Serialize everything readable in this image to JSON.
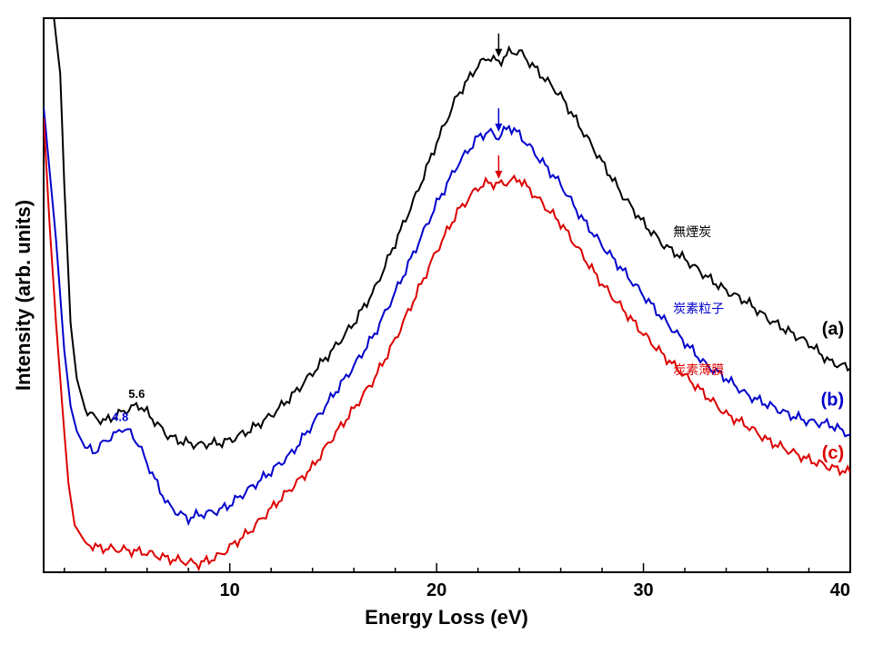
{
  "chart_data": {
    "type": "line",
    "title": "",
    "xlabel": "Energy Loss (eV)",
    "ylabel": "Intensity (arb. units)",
    "xlim": [
      1,
      40
    ],
    "ylim": [
      0,
      100
    ],
    "x_ticks": [
      10,
      20,
      30,
      40
    ],
    "y_tick_labels": false,
    "grid": false,
    "series": [
      {
        "name": "無煙炭",
        "letter": "(a)",
        "color": "#000000",
        "points": [
          [
            1.3,
            100
          ],
          [
            1.5,
            100
          ],
          [
            1.8,
            90
          ],
          [
            2.0,
            70
          ],
          [
            2.3,
            45
          ],
          [
            2.6,
            35
          ],
          [
            3.0,
            29.5
          ],
          [
            3.5,
            27.8
          ],
          [
            4.0,
            27.3
          ],
          [
            4.5,
            28.3
          ],
          [
            5.0,
            29.3
          ],
          [
            5.6,
            30.2
          ],
          [
            6.0,
            28.8
          ],
          [
            6.5,
            26.7
          ],
          [
            7.0,
            24.7
          ],
          [
            7.5,
            23.8
          ],
          [
            8.0,
            23.3
          ],
          [
            8.5,
            23.0
          ],
          [
            9.0,
            23.2
          ],
          [
            9.5,
            23.3
          ],
          [
            10.0,
            23.8
          ],
          [
            11.0,
            25.7
          ],
          [
            12.0,
            28.3
          ],
          [
            13.0,
            31.8
          ],
          [
            14.0,
            36.0
          ],
          [
            15.0,
            40.2
          ],
          [
            16.0,
            45.0
          ],
          [
            17.0,
            51.0
          ],
          [
            18.0,
            59.5
          ],
          [
            19.0,
            68.0
          ],
          [
            20.0,
            77.5
          ],
          [
            21.0,
            86.0
          ],
          [
            22.0,
            91.5
          ],
          [
            22.5,
            93.0
          ],
          [
            23.0,
            92.0
          ],
          [
            23.5,
            93.8
          ],
          [
            24.0,
            94.0
          ],
          [
            25.0,
            90.0
          ],
          [
            26.0,
            86.0
          ],
          [
            27.0,
            80.0
          ],
          [
            28.0,
            74.0
          ],
          [
            29.0,
            68.0
          ],
          [
            30.0,
            63.0
          ],
          [
            31.0,
            59.0
          ],
          [
            32.0,
            56.5
          ],
          [
            33.0,
            53.5
          ],
          [
            34.0,
            50.8
          ],
          [
            35.0,
            48.8
          ],
          [
            36.0,
            45.8
          ],
          [
            37.0,
            43.5
          ],
          [
            38.0,
            41.3
          ],
          [
            39.0,
            38.0
          ],
          [
            40.0,
            36.8
          ]
        ]
      },
      {
        "name": "炭素粒子",
        "letter": "(b)",
        "color": "#0000cc",
        "points": [
          [
            1.0,
            84
          ],
          [
            1.3,
            72
          ],
          [
            1.6,
            60
          ],
          [
            2.0,
            40
          ],
          [
            2.3,
            30
          ],
          [
            2.6,
            25.5
          ],
          [
            3.0,
            22.5
          ],
          [
            3.5,
            21.8
          ],
          [
            4.0,
            23.8
          ],
          [
            4.5,
            25.0
          ],
          [
            4.8,
            26.0
          ],
          [
            5.2,
            25.2
          ],
          [
            5.6,
            23.0
          ],
          [
            6.0,
            19.7
          ],
          [
            6.5,
            15.8
          ],
          [
            7.0,
            12.2
          ],
          [
            7.5,
            10.7
          ],
          [
            8.0,
            9.7
          ],
          [
            8.5,
            10.4
          ],
          [
            9.0,
            10.7
          ],
          [
            9.5,
            11.2
          ],
          [
            10.0,
            12.2
          ],
          [
            11.0,
            15.2
          ],
          [
            12.0,
            18.2
          ],
          [
            13.0,
            21.5
          ],
          [
            14.0,
            26.7
          ],
          [
            15.0,
            32.0
          ],
          [
            16.0,
            37.2
          ],
          [
            17.0,
            43.0
          ],
          [
            18.0,
            50.5
          ],
          [
            19.0,
            58.5
          ],
          [
            20.0,
            66.5
          ],
          [
            21.0,
            73.5
          ],
          [
            22.0,
            78.5
          ],
          [
            22.5,
            79.5
          ],
          [
            23.0,
            78.5
          ],
          [
            23.5,
            80.5
          ],
          [
            24.0,
            79.0
          ],
          [
            25.0,
            74.5
          ],
          [
            26.0,
            70.0
          ],
          [
            27.0,
            64.0
          ],
          [
            28.0,
            59.0
          ],
          [
            29.0,
            54.5
          ],
          [
            30.0,
            50.0
          ],
          [
            31.0,
            45.5
          ],
          [
            32.0,
            41.5
          ],
          [
            33.0,
            37.5
          ],
          [
            34.0,
            35.0
          ],
          [
            35.0,
            32.0
          ],
          [
            36.0,
            30.3
          ],
          [
            37.0,
            28.5
          ],
          [
            38.0,
            27.2
          ],
          [
            39.0,
            26.7
          ],
          [
            40.0,
            24.8
          ]
        ]
      },
      {
        "name": "炭素薄膜",
        "letter": "(c)",
        "color": "#dd0000",
        "points": [
          [
            1.0,
            82
          ],
          [
            1.3,
            62
          ],
          [
            1.6,
            45
          ],
          [
            1.9,
            30
          ],
          [
            2.2,
            16
          ],
          [
            2.5,
            8.5
          ],
          [
            3.0,
            5.5
          ],
          [
            3.5,
            4.5
          ],
          [
            4.0,
            4.3
          ],
          [
            5.0,
            4.0
          ],
          [
            6.0,
            3.5
          ],
          [
            7.0,
            2.5
          ],
          [
            8.0,
            1.8
          ],
          [
            8.5,
            1.5
          ],
          [
            9.0,
            2.2
          ],
          [
            9.5,
            3.0
          ],
          [
            10.0,
            4.5
          ],
          [
            11.0,
            7.5
          ],
          [
            12.0,
            11.5
          ],
          [
            13.0,
            15.3
          ],
          [
            14.0,
            19.0
          ],
          [
            15.0,
            24.5
          ],
          [
            16.0,
            29.5
          ],
          [
            17.0,
            35.0
          ],
          [
            18.0,
            42.0
          ],
          [
            19.0,
            50.0
          ],
          [
            20.0,
            58.0
          ],
          [
            21.0,
            65.0
          ],
          [
            22.0,
            69.5
          ],
          [
            22.5,
            70.3
          ],
          [
            23.0,
            70.0
          ],
          [
            23.5,
            70.5
          ],
          [
            24.0,
            71.0
          ],
          [
            25.0,
            67.0
          ],
          [
            26.0,
            63.0
          ],
          [
            27.0,
            57.5
          ],
          [
            28.0,
            52.0
          ],
          [
            29.0,
            47.5
          ],
          [
            30.0,
            43.0
          ],
          [
            31.0,
            39.0
          ],
          [
            32.0,
            35.5
          ],
          [
            33.0,
            32.0
          ],
          [
            34.0,
            28.5
          ],
          [
            35.0,
            26.5
          ],
          [
            36.0,
            23.8
          ],
          [
            37.0,
            22.0
          ],
          [
            38.0,
            20.3
          ],
          [
            39.0,
            19.0
          ],
          [
            40.0,
            18.0
          ]
        ]
      }
    ],
    "annotations": [
      {
        "text": "5.6",
        "x": 5.5,
        "y": 30.2,
        "series": 0
      },
      {
        "text": "4.8",
        "x": 4.7,
        "y": 26.0,
        "series": 1
      }
    ],
    "arrows": [
      {
        "x": 23.0,
        "series": 0
      },
      {
        "x": 23.0,
        "series": 1
      },
      {
        "x": 23.0,
        "series": 2
      }
    ]
  }
}
